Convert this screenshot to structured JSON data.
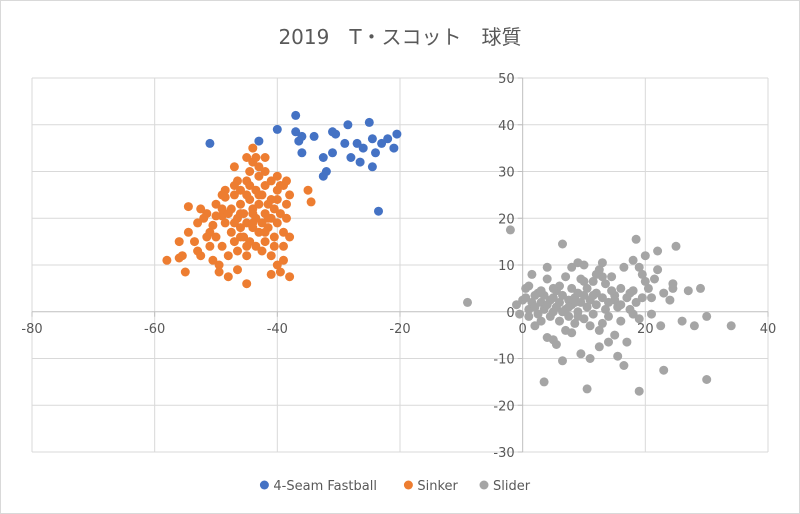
{
  "chart_data": {
    "type": "scatter",
    "title": "2019　T・スコット　球質",
    "xlabel": "",
    "ylabel": "",
    "xlim": [
      -80,
      40
    ],
    "ylim": [
      -30,
      50
    ],
    "xticks": [
      -80,
      -60,
      -40,
      -20,
      0,
      20,
      40
    ],
    "yticks": [
      -30,
      -20,
      -10,
      0,
      10,
      20,
      30,
      40,
      50
    ],
    "grid": true,
    "legend": "bottom",
    "series": [
      {
        "name": "4-Seam Fastball",
        "color": "#4472C4",
        "points": [
          [
            -51,
            36
          ],
          [
            -43,
            36.5
          ],
          [
            -40,
            39
          ],
          [
            -37,
            42
          ],
          [
            -37,
            38.5
          ],
          [
            -36,
            37.5
          ],
          [
            -34,
            37.5
          ],
          [
            -36.5,
            36.5
          ],
          [
            -36,
            34
          ],
          [
            -32.5,
            33
          ],
          [
            -31,
            38.5
          ],
          [
            -30.5,
            38
          ],
          [
            -31,
            34
          ],
          [
            -29,
            36
          ],
          [
            -28.5,
            40
          ],
          [
            -28,
            33
          ],
          [
            -27,
            36
          ],
          [
            -26.5,
            32
          ],
          [
            -26,
            35
          ],
          [
            -25,
            40.5
          ],
          [
            -24.5,
            37
          ],
          [
            -23,
            36
          ],
          [
            -22,
            37
          ],
          [
            -21,
            35
          ],
          [
            -20.5,
            38
          ],
          [
            -24,
            34
          ],
          [
            -24.5,
            31
          ],
          [
            -32,
            30
          ],
          [
            -32.5,
            29
          ],
          [
            -23.5,
            21.5
          ]
        ]
      },
      {
        "name": "Sinker",
        "color": "#ED7D31",
        "points": [
          [
            -58,
            11
          ],
          [
            -56,
            11.5
          ],
          [
            -56,
            15
          ],
          [
            -55.5,
            12
          ],
          [
            -54.5,
            22.5
          ],
          [
            -54.5,
            17
          ],
          [
            -55,
            8.5
          ],
          [
            -53.5,
            15
          ],
          [
            -53,
            19
          ],
          [
            -52.5,
            12
          ],
          [
            -51.5,
            21
          ],
          [
            -51,
            17
          ],
          [
            -51,
            14
          ],
          [
            -50.5,
            18.5
          ],
          [
            -50,
            23
          ],
          [
            -50,
            16
          ],
          [
            -49.5,
            10
          ],
          [
            -49.5,
            8.5
          ],
          [
            -49,
            20.5
          ],
          [
            -49,
            14
          ],
          [
            -48.5,
            24.5
          ],
          [
            -48.5,
            19
          ],
          [
            -48,
            12
          ],
          [
            -48,
            7.5
          ],
          [
            -47.5,
            22
          ],
          [
            -47.5,
            17
          ],
          [
            -47,
            15
          ],
          [
            -47,
            25
          ],
          [
            -46.5,
            20
          ],
          [
            -46.5,
            13
          ],
          [
            -46,
            26
          ],
          [
            -46,
            23
          ],
          [
            -46,
            18
          ],
          [
            -45.5,
            21
          ],
          [
            -45.5,
            16
          ],
          [
            -45,
            19
          ],
          [
            -45,
            28
          ],
          [
            -45,
            12
          ],
          [
            -44.5,
            30
          ],
          [
            -44.5,
            24
          ],
          [
            -44.5,
            15
          ],
          [
            -44,
            22
          ],
          [
            -44,
            18
          ],
          [
            -44,
            32
          ],
          [
            -43.5,
            26
          ],
          [
            -43.5,
            20
          ],
          [
            -43.5,
            14
          ],
          [
            -43,
            23
          ],
          [
            -43,
            29
          ],
          [
            -43,
            17
          ],
          [
            -42.5,
            25
          ],
          [
            -42.5,
            19
          ],
          [
            -42,
            21
          ],
          [
            -42,
            27
          ],
          [
            -42,
            15
          ],
          [
            -41.5,
            23
          ],
          [
            -41.5,
            18
          ],
          [
            -41,
            20
          ],
          [
            -41,
            28
          ],
          [
            -41,
            12
          ],
          [
            -40.5,
            22
          ],
          [
            -40.5,
            16
          ],
          [
            -40,
            24
          ],
          [
            -40,
            19
          ],
          [
            -40,
            10
          ],
          [
            -39.5,
            21
          ],
          [
            -39.5,
            27
          ],
          [
            -39,
            17
          ],
          [
            -39,
            14
          ],
          [
            -38.5,
            23
          ],
          [
            -38.5,
            20
          ],
          [
            -38,
            16
          ],
          [
            -38,
            25
          ],
          [
            -47,
            31
          ],
          [
            -45,
            33
          ],
          [
            -44,
            35
          ],
          [
            -43,
            31
          ],
          [
            -42,
            33
          ],
          [
            -40,
            29
          ],
          [
            -39,
            27
          ],
          [
            -35,
            26
          ],
          [
            -34.5,
            23.5
          ],
          [
            -38,
            7.5
          ],
          [
            -39.5,
            8.5
          ],
          [
            -45,
            6
          ],
          [
            -47,
            27
          ],
          [
            -48.5,
            26
          ],
          [
            -49,
            22
          ],
          [
            -51.5,
            16
          ],
          [
            -52,
            20
          ],
          [
            -53,
            13
          ],
          [
            -50.5,
            11
          ],
          [
            -46.5,
            9
          ],
          [
            -45,
            14
          ],
          [
            -42.5,
            13
          ],
          [
            -41,
            8
          ],
          [
            -40.5,
            14
          ],
          [
            -39,
            11
          ],
          [
            -47,
            19
          ],
          [
            -46,
            21
          ],
          [
            -44,
            19
          ],
          [
            -42,
            17
          ],
          [
            -41,
            24
          ],
          [
            -40,
            26
          ],
          [
            -38.5,
            28
          ],
          [
            -44.5,
            27
          ],
          [
            -43.5,
            33
          ],
          [
            -46.5,
            28
          ],
          [
            -49,
            25
          ],
          [
            -50,
            20.5
          ],
          [
            -52.5,
            22
          ],
          [
            -44,
            21
          ],
          [
            -43,
            25
          ],
          [
            -46,
            16
          ],
          [
            -48,
            21
          ],
          [
            -45,
            25
          ],
          [
            -42,
            30
          ],
          [
            -41.5,
            20
          ]
        ]
      },
      {
        "name": "Slider",
        "color": "#A5A5A5",
        "points": [
          [
            -9,
            2
          ],
          [
            -2,
            17.5
          ],
          [
            -1,
            1.5
          ],
          [
            -0.5,
            -0.5
          ],
          [
            0,
            2.5
          ],
          [
            0.5,
            5
          ],
          [
            0.5,
            3
          ],
          [
            1,
            0.5
          ],
          [
            1,
            -1
          ],
          [
            1.5,
            8
          ],
          [
            1.5,
            2
          ],
          [
            2,
            -3
          ],
          [
            2,
            1
          ],
          [
            2.5,
            4
          ],
          [
            2.5,
            -0.5
          ],
          [
            3,
            2
          ],
          [
            3,
            -2
          ],
          [
            3.5,
            0.5
          ],
          [
            3.5,
            3.5
          ],
          [
            4,
            9.5
          ],
          [
            4,
            1.5
          ],
          [
            4,
            -5.5
          ],
          [
            4.5,
            2.5
          ],
          [
            4.5,
            -1
          ],
          [
            5,
            0
          ],
          [
            5,
            3
          ],
          [
            5,
            -6
          ],
          [
            5.5,
            4.5
          ],
          [
            5.5,
            1
          ],
          [
            6,
            2
          ],
          [
            6,
            -2
          ],
          [
            6.5,
            14.5
          ],
          [
            6.5,
            3.5
          ],
          [
            7,
            0.5
          ],
          [
            7,
            7.5
          ],
          [
            7,
            -4
          ],
          [
            7.5,
            2.5
          ],
          [
            7.5,
            -1
          ],
          [
            8,
            5
          ],
          [
            8,
            1.5
          ],
          [
            8,
            9.5
          ],
          [
            8.5,
            3
          ],
          [
            8.5,
            -2.5
          ],
          [
            9,
            10.5
          ],
          [
            9,
            0
          ],
          [
            9,
            4
          ],
          [
            9.5,
            2
          ],
          [
            9.5,
            7
          ],
          [
            10,
            10
          ],
          [
            10,
            -1.5
          ],
          [
            10,
            3.5
          ],
          [
            10.5,
            1
          ],
          [
            10.5,
            5
          ],
          [
            11,
            -3
          ],
          [
            11,
            2.5
          ],
          [
            11.5,
            6.5
          ],
          [
            11.5,
            -0.5
          ],
          [
            12,
            4
          ],
          [
            12,
            1.5
          ],
          [
            12.5,
            9
          ],
          [
            12.5,
            -4
          ],
          [
            13,
            3
          ],
          [
            13,
            10.5
          ],
          [
            13.5,
            0.5
          ],
          [
            13.5,
            6
          ],
          [
            14,
            2
          ],
          [
            14,
            -1
          ],
          [
            14.5,
            7.5
          ],
          [
            15,
            3.5
          ],
          [
            15,
            -5
          ],
          [
            15.5,
            1
          ],
          [
            16,
            5
          ],
          [
            16,
            -2
          ],
          [
            16.5,
            9.5
          ],
          [
            17,
            3
          ],
          [
            17,
            -6.5
          ],
          [
            17.5,
            0.5
          ],
          [
            18,
            4.5
          ],
          [
            18,
            11
          ],
          [
            18.5,
            15.5
          ],
          [
            18.5,
            2
          ],
          [
            19,
            -1.5
          ],
          [
            19,
            9.5
          ],
          [
            19.5,
            3
          ],
          [
            20,
            12
          ],
          [
            20.5,
            5
          ],
          [
            21,
            -0.5
          ],
          [
            21.5,
            7
          ],
          [
            22,
            13
          ],
          [
            22.5,
            -3
          ],
          [
            23,
            4
          ],
          [
            24,
            2.5
          ],
          [
            24.5,
            5
          ],
          [
            25,
            14
          ],
          [
            26,
            -2
          ],
          [
            27,
            4.5
          ],
          [
            28,
            -3
          ],
          [
            29,
            5
          ],
          [
            30,
            -1
          ],
          [
            30,
            -14.5
          ],
          [
            34,
            -3
          ],
          [
            3.5,
            -15
          ],
          [
            10.5,
            -16.5
          ],
          [
            19,
            -17
          ],
          [
            23,
            -12.5
          ],
          [
            15.5,
            -9.5
          ],
          [
            12.5,
            -7.5
          ],
          [
            16.5,
            -11.5
          ],
          [
            9.5,
            -9
          ],
          [
            6.5,
            -10.5
          ],
          [
            5.5,
            -7
          ],
          [
            14,
            -6.5
          ],
          [
            11,
            -10
          ],
          [
            8,
            -4.5
          ],
          [
            20,
            6.5
          ],
          [
            17.5,
            4
          ],
          [
            13,
            7.5
          ],
          [
            2,
            3.5
          ],
          [
            6,
            5.5
          ],
          [
            10,
            6.5
          ],
          [
            4,
            7
          ],
          [
            1,
            5.5
          ],
          [
            15,
            2.5
          ],
          [
            8.5,
            2
          ],
          [
            11.5,
            3.5
          ],
          [
            7.5,
            1
          ],
          [
            5,
            5
          ],
          [
            12,
            8
          ],
          [
            14.5,
            4.5
          ],
          [
            16,
            1.5
          ],
          [
            19.5,
            8
          ],
          [
            22,
            9
          ],
          [
            24.5,
            6
          ],
          [
            3,
            4.5
          ],
          [
            6.5,
            0
          ],
          [
            9,
            -1
          ],
          [
            13,
            -2.5
          ],
          [
            18,
            -0.5
          ],
          [
            21,
            3
          ]
        ]
      }
    ]
  }
}
